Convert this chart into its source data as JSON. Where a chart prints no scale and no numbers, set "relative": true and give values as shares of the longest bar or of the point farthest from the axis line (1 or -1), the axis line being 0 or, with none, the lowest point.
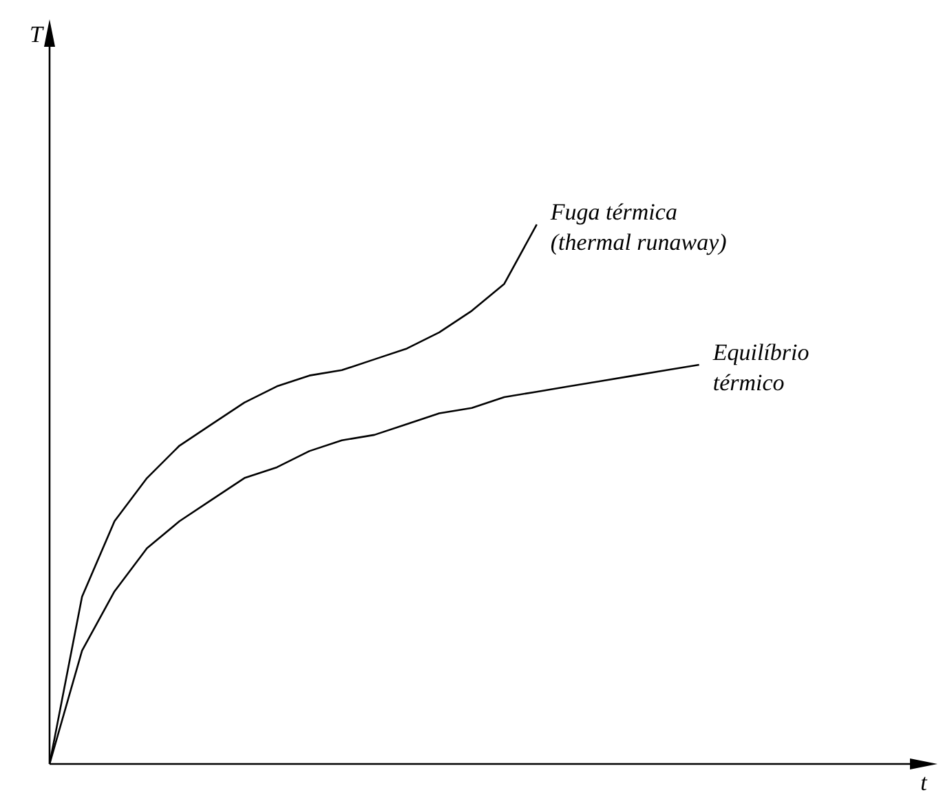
{
  "chart_data": {
    "type": "line",
    "relative": true,
    "xlabel": "t",
    "annotations": [
      "T"
    ],
    "legend": false,
    "marker": "none",
    "line_style": "solid",
    "categories": [
      null,
      null,
      null,
      null,
      null,
      null,
      null,
      null,
      null,
      null,
      null,
      null,
      null,
      null,
      null,
      null,
      null,
      null,
      null,
      null,
      null,
      null,
      null,
      null,
      null,
      null,
      null,
      null
    ],
    "series": [
      {
        "name": "Fuga térmica\n(thermal runaway)",
        "color": "#000000",
        "values": [
          0,
          0.31,
          0.45,
          0.53,
          0.59,
          0.63,
          0.67,
          0.7,
          0.72,
          0.73,
          0.75,
          0.77,
          0.8,
          0.84,
          0.89,
          1,
          null,
          null,
          null,
          null,
          null,
          null,
          null,
          null,
          null,
          null,
          null,
          null
        ]
      },
      {
        "name": "Equilíbrio\ntérmico",
        "color": "#000000",
        "values": [
          0,
          0.21,
          0.32,
          0.4,
          0.45,
          0.49,
          0.53,
          0.55,
          0.58,
          0.6,
          0.61,
          0.63,
          0.65,
          0.66,
          0.68,
          0.69,
          0.7,
          0.71,
          0.72,
          0.73,
          0.74,
          null,
          null,
          null,
          null,
          null,
          null,
          null
        ]
      }
    ]
  }
}
